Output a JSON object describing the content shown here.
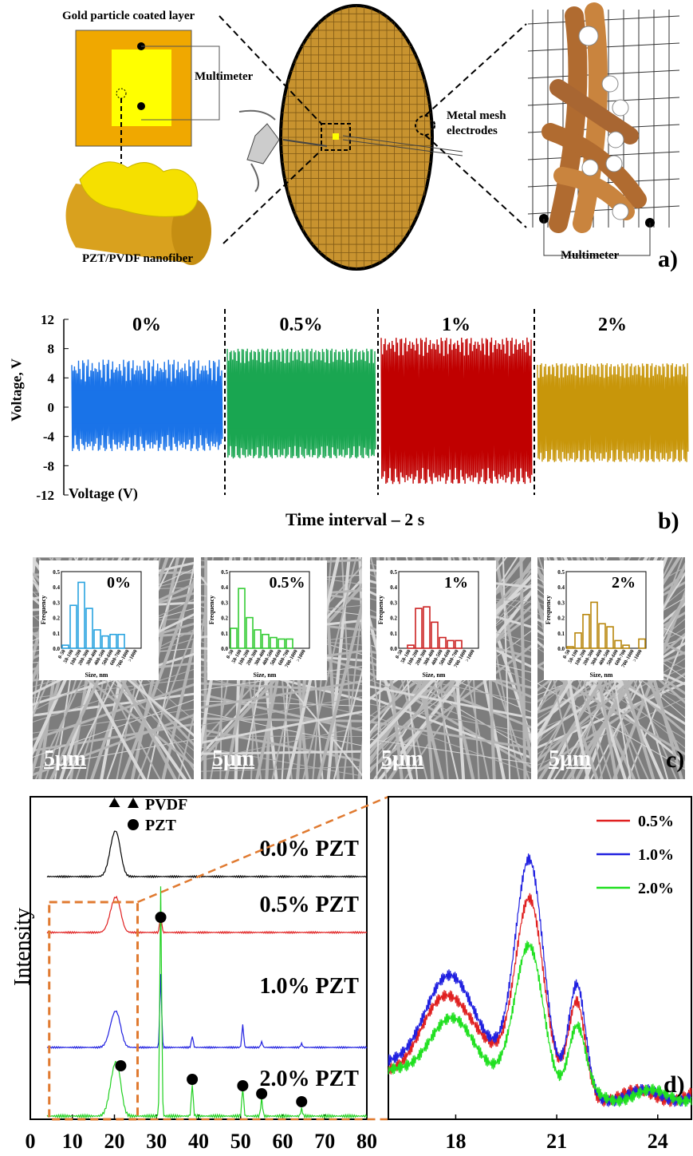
{
  "panel_a": {
    "labels": {
      "gold_layer": "Gold particle coated layer",
      "multimeter_left": "Multimeter",
      "metal_mesh": "Metal mesh\nelectrodes",
      "nanofiber": "PZT/PVDF nanofiber",
      "multimeter_right": "Multimeter"
    },
    "letter": "a)",
    "colors": {
      "gold": "#d4a23c",
      "yellow": "#ffff00",
      "orange_frame": "#f0a800",
      "fiber": "#c98a4b"
    }
  },
  "panel_b": {
    "letter": "b)",
    "xlabel": "Time interval – 2 s",
    "ylabel": "Voltage, V",
    "legend_label": "Voltage (V)",
    "yticks": [
      "12",
      "8",
      "4",
      "0",
      "-4",
      "-8",
      "-12"
    ],
    "segments": [
      {
        "label": "0%",
        "color": "#1a73e8",
        "high": 6.5,
        "low": -6,
        "hi_base": 5,
        "lo_base": -5
      },
      {
        "label": "0.5%",
        "color": "#1aa651",
        "high": 8,
        "low": -7,
        "hi_base": 7.5,
        "lo_base": -6.5
      },
      {
        "label": "1%",
        "color": "#c00000",
        "high": 9.5,
        "low": -10.5,
        "hi_base": 8.5,
        "lo_base": -9.5
      },
      {
        "label": "2%",
        "color": "#c8960a",
        "high": 6,
        "low": -7.5,
        "hi_base": 5.5,
        "lo_base": -7
      }
    ]
  },
  "panel_c": {
    "letter": "c)",
    "scale_label": "5μm",
    "hist_xlabel": "Size, nm",
    "hist_ylabel": "Frequency",
    "hist_yticks": [
      "0.5",
      "0.4",
      "0.3",
      "0.2",
      "0.1",
      "0.0"
    ],
    "hist_bins": [
      "0-50",
      "50-100",
      "100-200",
      "200-300",
      "300-400",
      "400-500",
      "500-600",
      "600-700",
      "700-1000",
      ">1000"
    ],
    "insets": [
      {
        "label": "0%",
        "color": "#29a3e0",
        "values": [
          0.02,
          0.28,
          0.43,
          0.26,
          0.12,
          0.08,
          0.09,
          0.09,
          0.0,
          0.0
        ]
      },
      {
        "label": "0.5%",
        "color": "#33cc33",
        "values": [
          0.13,
          0.39,
          0.2,
          0.12,
          0.09,
          0.07,
          0.06,
          0.06,
          0.0,
          0.0
        ]
      },
      {
        "label": "1%",
        "color": "#cc2222",
        "values": [
          0.0,
          0.02,
          0.26,
          0.27,
          0.17,
          0.07,
          0.05,
          0.05,
          0.0,
          0.0
        ]
      },
      {
        "label": "2%",
        "color": "#b8860b",
        "values": [
          0.01,
          0.1,
          0.22,
          0.3,
          0.16,
          0.14,
          0.05,
          0.02,
          0.0,
          0.06
        ]
      }
    ]
  },
  "chart_data": [
    {
      "type": "line",
      "title": "",
      "ylabel": "Intensity",
      "xlabel": "",
      "xlim": [
        0,
        80
      ],
      "xticks": [
        "0",
        "10",
        "20",
        "30",
        "40",
        "50",
        "60",
        "70",
        "80"
      ],
      "legend": {
        "pvdf": "PVDF",
        "pzt": "PZT",
        "placement": "top"
      },
      "series": [
        {
          "name": "0.0% PZT",
          "color": "#000000",
          "peaks": [
            {
              "x": 20,
              "h": 1.0
            }
          ]
        },
        {
          "name": "0.5% PZT",
          "color": "#e02020",
          "peaks": [
            {
              "x": 20,
              "h": 0.7
            },
            {
              "x": 31,
              "h": 0.5
            }
          ]
        },
        {
          "name": "1.0% PZT",
          "color": "#2020e0",
          "peaks": [
            {
              "x": 20,
              "h": 0.8
            },
            {
              "x": 31,
              "h": 1.9
            },
            {
              "x": 38.5,
              "h": 0.3
            },
            {
              "x": 50.5,
              "h": 0.6
            },
            {
              "x": 55,
              "h": 0.15
            },
            {
              "x": 64.5,
              "h": 0.1
            }
          ]
        },
        {
          "name": "2.0% PZT",
          "color": "#20d020",
          "peaks": [
            {
              "x": 20,
              "h": 0.6
            },
            {
              "x": 31,
              "h": 3.2
            },
            {
              "x": 38.5,
              "h": 0.45
            },
            {
              "x": 50.5,
              "h": 0.4
            },
            {
              "x": 55,
              "h": 0.25
            },
            {
              "x": 64.5,
              "h": 0.1
            }
          ]
        }
      ],
      "pzt_markers_x": [
        21.5,
        31,
        38.5,
        50.5,
        55,
        64.5
      ],
      "pvdf_marker_x": [
        20
      ]
    },
    {
      "type": "line",
      "title": "",
      "xlim": [
        16,
        25
      ],
      "xticks": [
        "18",
        "21",
        "24"
      ],
      "letter": "d)",
      "series": [
        {
          "name": "0.5%",
          "color": "#e02020",
          "scale": 0.85
        },
        {
          "name": "1.0%",
          "color": "#2020e0",
          "scale": 1.0
        },
        {
          "name": "2.0%",
          "color": "#20e020",
          "scale": 0.62
        }
      ]
    }
  ]
}
